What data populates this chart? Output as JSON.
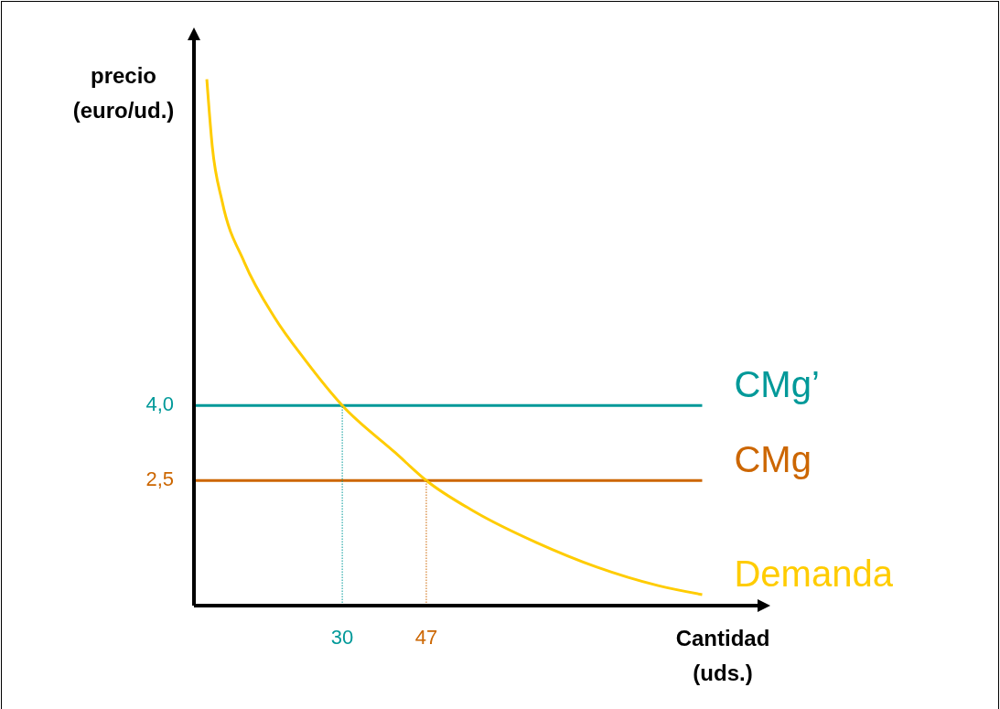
{
  "chart_data": {
    "type": "line",
    "xlabel": "Cantidad\n(uds.)",
    "ylabel": "precio\n(euro/ud.)",
    "xlim": [
      0,
      114
    ],
    "ylim": [
      0,
      11.3
    ],
    "xticks": [
      30,
      47
    ],
    "yticks": [
      {
        "value": 4,
        "label": "4,0"
      },
      {
        "value": 2.5,
        "label": "2,5"
      }
    ],
    "grid": false,
    "marker": "none",
    "series": [
      {
        "name": "CMg’",
        "color": "#009999",
        "x": [
          0,
          102.8
        ],
        "values": [
          4,
          4
        ]
      },
      {
        "name": "CMg",
        "color": "#cc6600",
        "x": [
          0,
          102.8
        ],
        "values": [
          2.5,
          2.5
        ]
      },
      {
        "name": "Demanda",
        "color": "#ffcc00",
        "x": [
          2.6,
          3.7,
          5.7,
          10.2,
          16.3,
          22.4,
          30,
          40.8,
          47,
          56.9,
          69.3,
          81.5,
          93.9,
          102.8
        ],
        "values": [
          10.52,
          9.18,
          8.08,
          6.86,
          5.76,
          4.92,
          4,
          3.05,
          2.5,
          1.87,
          1.26,
          0.77,
          0.4,
          0.22
        ]
      },
      {
        "color": "#009999",
        "line_style": "dotted",
        "x": [
          30,
          30
        ],
        "values": [
          0,
          4
        ]
      },
      {
        "color": "#cc6600",
        "line_style": "dotted",
        "x": [
          47,
          47
        ],
        "values": [
          0,
          2.5
        ]
      }
    ]
  }
}
